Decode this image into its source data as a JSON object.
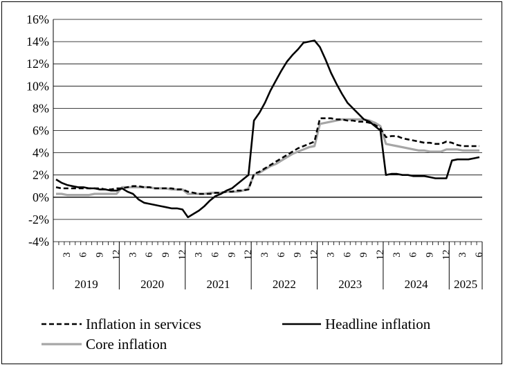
{
  "chart_data": {
    "type": "line",
    "ylim": [
      -4,
      16
    ],
    "y_ticks": [
      "16%",
      "14%",
      "12%",
      "10%",
      "8%",
      "6%",
      "4%",
      "2%",
      "0%",
      "-2%",
      "-4%"
    ],
    "y_tick_values": [
      16,
      14,
      12,
      10,
      8,
      6,
      4,
      2,
      0,
      -2,
      -4
    ],
    "month_tick_labels": [
      "3",
      "6",
      "9",
      "12"
    ],
    "last_year_month_labels": [
      "3",
      "6"
    ],
    "years": [
      "2019",
      "2020",
      "2021",
      "2022",
      "2023",
      "2024",
      "2025"
    ],
    "x_period": "2019-01 to 2025-06 (monthly)",
    "grid": "horizontal",
    "legend_position": "bottom",
    "series": [
      {
        "name": "Inflation in services",
        "color": "#000000",
        "dash": "dashed",
        "values": [
          0.9,
          0.8,
          0.8,
          0.8,
          0.8,
          0.8,
          0.8,
          0.8,
          0.8,
          0.7,
          0.7,
          0.8,
          0.8,
          0.9,
          1.0,
          1.0,
          0.9,
          0.9,
          0.8,
          0.8,
          0.8,
          0.8,
          0.7,
          0.7,
          0.5,
          0.4,
          0.3,
          0.3,
          0.3,
          0.4,
          0.4,
          0.5,
          0.5,
          0.6,
          0.6,
          0.7,
          2.1,
          2.3,
          2.6,
          2.9,
          3.2,
          3.5,
          3.8,
          4.1,
          4.4,
          4.6,
          4.8,
          5.0,
          7.1,
          7.1,
          7.1,
          7.0,
          7.0,
          6.9,
          6.9,
          6.8,
          6.8,
          6.7,
          6.5,
          6.2,
          5.4,
          5.5,
          5.5,
          5.3,
          5.2,
          5.1,
          5.0,
          4.9,
          4.9,
          4.8,
          4.8,
          5.0,
          4.9,
          4.7,
          4.6,
          4.6,
          4.6,
          4.6
        ]
      },
      {
        "name": "Headline inflation",
        "color": "#000000",
        "dash": "solid",
        "values": [
          1.6,
          1.3,
          1.1,
          1.0,
          0.9,
          0.9,
          0.8,
          0.8,
          0.7,
          0.7,
          0.6,
          0.6,
          0.8,
          0.5,
          0.3,
          -0.2,
          -0.5,
          -0.6,
          -0.7,
          -0.8,
          -0.9,
          -1.0,
          -1.0,
          -1.1,
          -1.8,
          -1.5,
          -1.2,
          -0.8,
          -0.3,
          0.1,
          0.3,
          0.6,
          0.8,
          1.2,
          1.6,
          2.0,
          6.9,
          7.6,
          8.5,
          9.6,
          10.5,
          11.4,
          12.2,
          12.8,
          13.3,
          13.9,
          14.0,
          14.1,
          13.5,
          12.4,
          11.2,
          10.2,
          9.3,
          8.5,
          8.0,
          7.5,
          7.0,
          6.8,
          6.4,
          6.0,
          2.0,
          2.1,
          2.1,
          2.0,
          2.0,
          1.9,
          1.9,
          1.9,
          1.8,
          1.7,
          1.7,
          1.7,
          3.3,
          3.4,
          3.4,
          3.4,
          3.5,
          3.6
        ]
      },
      {
        "name": "Core inflation",
        "color": "#a6a6a6",
        "dash": "solid",
        "values": [
          0.3,
          0.3,
          0.2,
          0.2,
          0.2,
          0.2,
          0.2,
          0.3,
          0.3,
          0.3,
          0.3,
          0.3,
          0.9,
          0.9,
          0.9,
          0.9,
          0.9,
          0.9,
          0.8,
          0.8,
          0.8,
          0.7,
          0.7,
          0.7,
          0.3,
          0.3,
          0.3,
          0.3,
          0.4,
          0.4,
          0.4,
          0.5,
          0.5,
          0.5,
          0.6,
          0.8,
          2.0,
          2.2,
          2.5,
          2.8,
          3.0,
          3.3,
          3.6,
          3.9,
          4.1,
          4.3,
          4.5,
          4.6,
          6.6,
          6.7,
          6.8,
          6.9,
          7.0,
          7.0,
          7.0,
          7.0,
          7.0,
          6.9,
          6.7,
          6.4,
          4.8,
          4.7,
          4.6,
          4.5,
          4.4,
          4.3,
          4.2,
          4.2,
          4.1,
          4.1,
          4.1,
          4.3,
          4.3,
          4.3,
          4.2,
          4.2,
          4.2,
          4.2
        ]
      }
    ]
  }
}
